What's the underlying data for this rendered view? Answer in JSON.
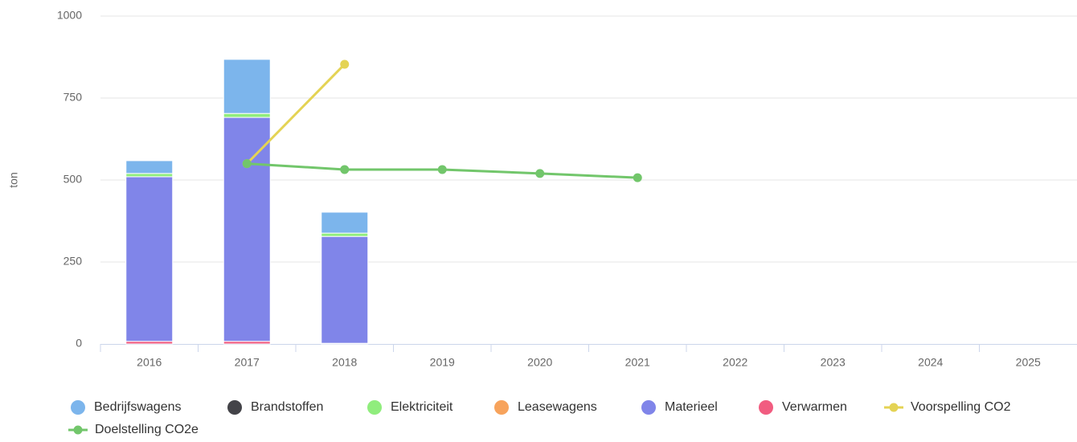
{
  "chart_data": {
    "type": "stacked-bar-line",
    "y_label": "ton",
    "categories": [
      "2016",
      "2017",
      "2018",
      "2019",
      "2020",
      "2021",
      "2022",
      "2023",
      "2024",
      "2025"
    ],
    "ylim": [
      0,
      1000
    ],
    "yticks": [
      0,
      250,
      500,
      750,
      1000
    ],
    "grid": true,
    "series": [
      {
        "name": "Bedrijfswagens",
        "color": "#7cb5ec",
        "kind": "bar",
        "values": [
          39,
          165,
          64,
          null,
          null,
          null,
          null,
          null,
          null,
          null
        ]
      },
      {
        "name": "Brandstoffen",
        "color": "#434348",
        "kind": "bar",
        "values": [
          0,
          0,
          0,
          null,
          null,
          null,
          null,
          null,
          null,
          null
        ]
      },
      {
        "name": "Elektriciteit",
        "color": "#90ed7d",
        "kind": "bar",
        "values": [
          10,
          12,
          10,
          null,
          null,
          null,
          null,
          null,
          null,
          null
        ]
      },
      {
        "name": "Leasewagens",
        "color": "#f7a35c",
        "kind": "bar",
        "values": [
          0,
          0,
          0,
          null,
          null,
          null,
          null,
          null,
          null,
          null
        ]
      },
      {
        "name": "Materieel",
        "color": "#8085e9",
        "kind": "bar",
        "values": [
          502,
          683,
          326,
          null,
          null,
          null,
          null,
          null,
          null,
          null
        ]
      },
      {
        "name": "Verwarmen",
        "color": "#f15c80",
        "kind": "bar",
        "values": [
          8,
          8,
          2,
          null,
          null,
          null,
          null,
          null,
          null,
          null
        ]
      },
      {
        "name": "Voorspelling CO2",
        "color": "#e4d354",
        "kind": "line",
        "values": [
          null,
          550,
          853,
          null,
          null,
          null,
          null,
          null,
          null,
          null
        ]
      },
      {
        "name": "Doelstelling CO2e",
        "color": "#72c66b",
        "kind": "line",
        "values": [
          null,
          550,
          532,
          532,
          520,
          507,
          null,
          null,
          null,
          null
        ]
      }
    ]
  }
}
